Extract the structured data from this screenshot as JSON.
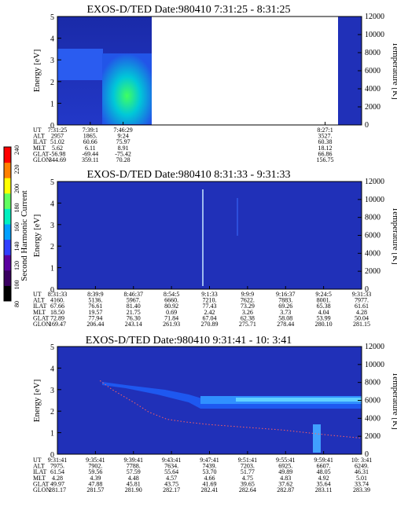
{
  "colorbar": {
    "label": "Second Harmonic Current",
    "ticks": [
      "80",
      "100",
      "120",
      "140",
      "160",
      "180",
      "200",
      "220",
      "240"
    ],
    "colors": [
      "#000000",
      "#3a0060",
      "#5a00a0",
      "#3040ff",
      "#00a0ff",
      "#00f0c0",
      "#60ff60",
      "#ffff00",
      "#ff8000",
      "#ff0000"
    ]
  },
  "chart_data": [
    {
      "type": "heatmap",
      "title": "EXOS-D/TED   Date:980410  7:31:25 - 8:31:25",
      "ylabel": "Energy [eV]",
      "y2label": "Temperature [K]",
      "ylim": [
        0,
        5
      ],
      "y2lim": [
        0,
        12000
      ],
      "yticks": [
        "0",
        "1",
        "2",
        "3",
        "4",
        "5"
      ],
      "y2ticks": [
        "0",
        "2000",
        "4000",
        "6000",
        "8000",
        "10000",
        "12000"
      ],
      "orbit_labels": [
        "UT",
        "ALT",
        "ILAT",
        "MLT",
        "GLAT",
        "GLON"
      ],
      "orbit_columns": [
        [
          "7:31:25",
          "2957",
          "51.02",
          "5.62",
          "-56.98",
          "344.69"
        ],
        [
          "7:39:1",
          "1865.",
          "60.66",
          "6.11",
          "-69.44",
          "359.11"
        ],
        [
          "7:46:29",
          "9:24",
          "75.97",
          "8.91",
          "-75.42",
          "70.28"
        ],
        [
          "8:27:1",
          "3527.",
          "60.38",
          "18.12",
          "66.86",
          "156.75"
        ]
      ],
      "data_gap": "7:46:29 - 8:27:1"
    },
    {
      "type": "heatmap",
      "title": "EXOS-D/TED   Date:980410  8:31:33 - 9:31:33",
      "ylabel": "Energy [eV]",
      "y2label": "Temperature [K]",
      "ylim": [
        0,
        5
      ],
      "y2lim": [
        0,
        12000
      ],
      "yticks": [
        "0",
        "1",
        "2",
        "3",
        "4",
        "5"
      ],
      "y2ticks": [
        "0",
        "2000",
        "4000",
        "6000",
        "8000",
        "10000",
        "12000"
      ],
      "orbit_labels": [
        "UT",
        "ALT",
        "ILAT",
        "MLT",
        "GLAT",
        "GLON"
      ],
      "orbit_columns": [
        [
          "8:31:33",
          "4160.",
          "67.66",
          "18.50",
          "72.89",
          "169.47"
        ],
        [
          "8:39:9",
          "5136.",
          "76.61",
          "19.57",
          "77.94",
          "206.44"
        ],
        [
          "8:46:37",
          "5967.",
          "81.40",
          "21.75",
          "76.30",
          "243.14"
        ],
        [
          "8:54:5",
          "6660.",
          "80.92",
          "0.69",
          "71.84",
          "261.93"
        ],
        [
          "9:1:33",
          "7210.",
          "77.43",
          "2.42",
          "67.04",
          "270.89"
        ],
        [
          "9:9:9",
          "7622.",
          "73.29",
          "3.26",
          "62.38",
          "275.71"
        ],
        [
          "9:16:37",
          "7883.",
          "69.26",
          "3.73",
          "58.08",
          "278.44"
        ],
        [
          "9:24:5",
          "8001.",
          "65.38",
          "4.04",
          "53.99",
          "280.10"
        ],
        [
          "9:31:33",
          "7977.",
          "61.61",
          "4.28",
          "50.04",
          "281.15"
        ]
      ]
    },
    {
      "type": "heatmap",
      "title": "EXOS-D/TED   Date:980410  9:31:41 - 10: 3:41",
      "ylabel": "Energy [eV]",
      "y2label": "Temperature [K]",
      "ylim": [
        0,
        5
      ],
      "y2lim": [
        0,
        12000
      ],
      "yticks": [
        "0",
        "1",
        "2",
        "3",
        "4",
        "5"
      ],
      "y2ticks": [
        "0",
        "2000",
        "4000",
        "6000",
        "8000",
        "10000",
        "12000"
      ],
      "orbit_labels": [
        "UT",
        "ALT",
        "ILAT",
        "MLT",
        "GLAT",
        "GLON"
      ],
      "orbit_columns": [
        [
          "9:31:41",
          "7975.",
          "61.54",
          "4.28",
          "49.97",
          "281.17"
        ],
        [
          "9:35:41",
          "7902.",
          "59.56",
          "4.39",
          "47.88",
          "281.57"
        ],
        [
          "9:39:41",
          "7788.",
          "57.59",
          "4.48",
          "45.81",
          "281.90"
        ],
        [
          "9:43:41",
          "7634.",
          "55.64",
          "4.57",
          "43.75",
          "282.17"
        ],
        [
          "9:47:41",
          "7439.",
          "53.70",
          "4.66",
          "41.69",
          "282.41"
        ],
        [
          "9:51:41",
          "7203.",
          "51.77",
          "4.75",
          "39.65",
          "282.64"
        ],
        [
          "9:55:41",
          "6925.",
          "49.89",
          "4.83",
          "37.62",
          "282.87"
        ],
        [
          "9:59:41",
          "6607.",
          "48.05",
          "4.92",
          "35.64",
          "283.11"
        ],
        [
          "10: 3:41",
          "6249.",
          "46.31",
          "5.01",
          "33.74",
          "283.39"
        ]
      ],
      "temperature_trace": {
        "x_fraction": [
          0.14,
          0.18,
          0.22,
          0.26,
          0.3,
          0.36,
          0.42,
          0.5,
          0.58,
          0.66,
          0.74,
          0.82,
          0.9,
          1.0
        ],
        "temperature_K": [
          8200,
          7200,
          6400,
          5600,
          4700,
          3900,
          3600,
          3300,
          3100,
          2900,
          2700,
          2400,
          2100,
          1800
        ]
      }
    }
  ]
}
